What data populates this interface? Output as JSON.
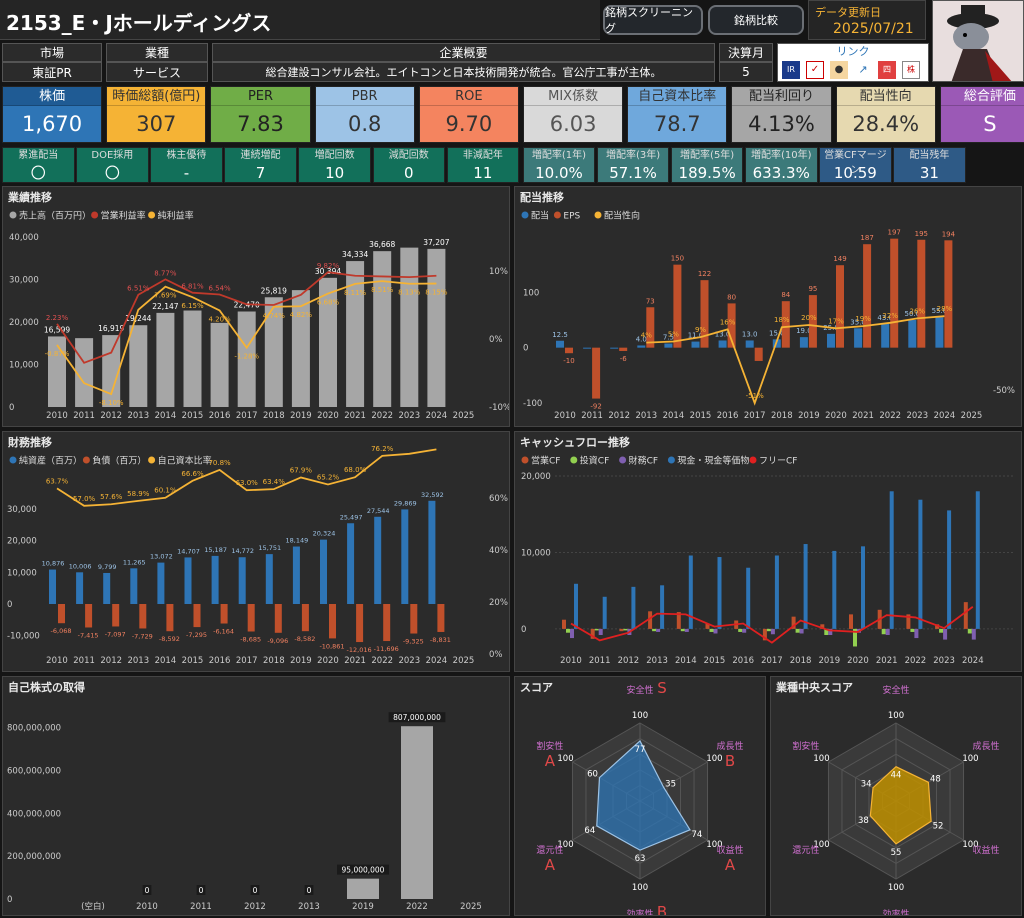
{
  "header": {
    "title": "2153_E・Jホールディングス",
    "btn_screening": "銘柄スクリーニング",
    "btn_compare": "銘柄比較",
    "update_label": "データ更新日",
    "update_date": "2025/07/21"
  },
  "info": {
    "market_label": "市場",
    "market": "東証PR",
    "industry_label": "業種",
    "industry": "サービス",
    "summary_label": "企業概要",
    "summary": "総合建設コンサル会社。エイトコンと日本技術開発が統合。官公庁工事が主体。",
    "fiscal_label": "決算月",
    "fiscal": "5",
    "link_label": "リンク"
  },
  "link_icons": [
    "ir-bank-icon",
    "kabutan-icon",
    "minkabu-icon",
    "chart-icon",
    "shikiho-icon",
    "kabunushi-icon"
  ],
  "kpis": [
    {
      "label": "株価",
      "value": "1,670",
      "bg": "#2e75b6",
      "lbg": "#1f5b94",
      "color": "#fff"
    },
    {
      "label": "時価総額(億円)",
      "value": "307",
      "bg": "#f5b335",
      "lbg": "#f5b335",
      "color": "#333"
    },
    {
      "label": "PER",
      "value": "7.83",
      "bg": "#70ad47",
      "lbg": "#70ad47",
      "color": "#222"
    },
    {
      "label": "PBR",
      "value": "0.8",
      "bg": "#9dc3e6",
      "lbg": "#9dc3e6",
      "color": "#333"
    },
    {
      "label": "ROE",
      "value": "9.70",
      "bg": "#f4845f",
      "lbg": "#f4845f",
      "color": "#333"
    },
    {
      "label": "MIX係数",
      "value": "6.03",
      "bg": "#d9d9d9",
      "lbg": "#d9d9d9",
      "color": "#555"
    },
    {
      "label": "自己資本比率",
      "value": "78.7",
      "bg": "#6fa8dc",
      "lbg": "#6fa8dc",
      "color": "#333"
    },
    {
      "label": "配当利回り",
      "value": "4.13%",
      "bg": "#a6a6a6",
      "lbg": "#a6a6a6",
      "color": "#222"
    },
    {
      "label": "配当性向",
      "value": "28.4%",
      "bg": "#e6d9b0",
      "lbg": "#e6d9b0",
      "color": "#333"
    },
    {
      "label": "総合評価",
      "value": "S",
      "bg": "#9b59b6",
      "lbg": "#9b59b6",
      "color": "#fff"
    }
  ],
  "dividend_stats": [
    {
      "label": "累進配当",
      "value": "〇"
    },
    {
      "label": "DOE採用",
      "value": "〇"
    },
    {
      "label": "株主優待",
      "value": "-"
    },
    {
      "label": "連続増配",
      "value": "7"
    },
    {
      "label": "増配回数",
      "value": "10"
    },
    {
      "label": "減配回数",
      "value": "0"
    },
    {
      "label": "非減配年",
      "value": "11"
    }
  ],
  "growth_stats": [
    {
      "label": "増配率(1年)",
      "value": "10.0%"
    },
    {
      "label": "増配率(3年)",
      "value": "57.1%"
    },
    {
      "label": "増配率(5年)",
      "value": "189.5%"
    },
    {
      "label": "増配率(10年)",
      "value": "633.3%"
    }
  ],
  "cf_stats": [
    {
      "label": "営業CFマージン",
      "value": "10.59"
    },
    {
      "label": "配当残年",
      "value": "31"
    }
  ],
  "panels": {
    "perf": "業績推移",
    "div": "配当推移",
    "fin": "財務推移",
    "cf": "キャッシュフロー推移",
    "buyback": "自己株式の取得",
    "score": "スコア",
    "median": "業種中央スコア"
  },
  "charts": [
    {
      "type": "bar",
      "title": "業績推移",
      "legend": [
        "売上高（百万円）",
        "営業利益率",
        "純利益率"
      ],
      "categories": [
        "2010",
        "2011",
        "2012",
        "2013",
        "2014",
        "2015",
        "2016",
        "2017",
        "2018",
        "2019",
        "2020",
        "2021",
        "2022",
        "2023",
        "2024",
        "2025"
      ],
      "series": [
        {
          "name": "売上高（百万円）",
          "values": [
            16599,
            16200,
            16919,
            19244,
            22147,
            22700,
            19800,
            22470,
            25819,
            27500,
            30394,
            34334,
            36668,
            37500,
            37207,
            null
          ],
          "color": "#a6a6a6"
        },
        {
          "name": "営業利益率",
          "values": [
            2.23,
            -3.5,
            -2.0,
            6.51,
            8.77,
            6.81,
            6.54,
            5.1,
            5.0,
            6.5,
            9.82,
            9.3,
            9.2,
            9.1,
            9.3,
            null
          ],
          "color": "#c0392b"
        },
        {
          "name": "純利益率",
          "values": [
            -0.87,
            -6.5,
            -8.1,
            4.3,
            7.69,
            6.15,
            4.2,
            -1.28,
            4.74,
            4.82,
            6.68,
            8.11,
            8.51,
            8.13,
            8.15,
            null
          ],
          "color": "#f5b335"
        }
      ],
      "labels_bar": [
        "16,599",
        "",
        "16,919",
        "19,244",
        "22,147",
        "",
        "",
        "22,470",
        "25,819",
        "",
        "30,394",
        "34,334",
        "36,668",
        "",
        "37,207",
        ""
      ],
      "labels_op": [
        "2.23%",
        "",
        "",
        "6.51%",
        "8.77%",
        "6.81%",
        "6.54%",
        "",
        "",
        "",
        "9.82%",
        "",
        "",
        "",
        "",
        ""
      ],
      "labels_net": [
        "-0.87%",
        "",
        "-8.10%",
        "",
        "7.69%",
        "6.15%",
        "4.20%",
        "-1.28%",
        "4.74%",
        "4.82%",
        "6.68%",
        "8.11%",
        "8.51%",
        "8.13%",
        "8.15%",
        ""
      ],
      "yticks": [
        "40,000",
        "30,000",
        "20,000",
        "10,000",
        "0"
      ],
      "y2ticks": [
        "10%",
        "0%",
        "-10%"
      ],
      "ylim": [
        0,
        40000
      ],
      "y2lim": [
        -10,
        15
      ]
    },
    {
      "type": "bar",
      "title": "配当推移",
      "legend": [
        "配当",
        "EPS",
        "配当性向"
      ],
      "categories": [
        "2010",
        "2011",
        "2012",
        "2013",
        "2014",
        "2015",
        "2016",
        "2017",
        "2018",
        "2019",
        "2020",
        "2021",
        "2022",
        "2023",
        "2024",
        "2025"
      ],
      "series": [
        {
          "name": "配当",
          "values": [
            12.5,
            0,
            0,
            4.0,
            7.5,
            11.0,
            13.0,
            13.0,
            15.0,
            19.0,
            25.0,
            35.0,
            43.0,
            50.0,
            55.0,
            null
          ],
          "color": "#2e75b6"
        },
        {
          "name": "EPS",
          "values": [
            -10,
            -92,
            -6,
            73,
            150,
            122,
            80,
            -24,
            84,
            95,
            149,
            187,
            197,
            195,
            194,
            null
          ],
          "color": "#c0502b"
        },
        {
          "name": "配当性向",
          "values": [
            null,
            null,
            null,
            4,
            5,
            9,
            16,
            -51,
            18,
            20,
            17,
            19,
            22,
            26,
            28,
            null
          ],
          "color": "#f5b335"
        }
      ],
      "labels_div": [
        "12.5",
        "",
        "",
        "4.0",
        "7.5",
        "11.0",
        "13.0",
        "13.0",
        "15.0",
        "19.0",
        "25.0",
        "35.0",
        "43.0",
        "50.0",
        "55.0",
        ""
      ],
      "labels_eps": [
        "-10",
        "-92",
        "-6",
        "73",
        "150",
        "122",
        "80",
        "",
        "84",
        "95",
        "149",
        "187",
        "197",
        "195",
        "194",
        ""
      ],
      "labels_pr": [
        "",
        "",
        "",
        "4%",
        "5%",
        "9%",
        "16%",
        "-51%",
        "18%",
        "20%",
        "17%",
        "19%",
        "22%",
        "26%",
        "28%",
        ""
      ],
      "yticks": [
        "100",
        "0",
        "-100"
      ],
      "y2ticks": [
        "-50%"
      ],
      "ylim": [
        -100,
        200
      ]
    },
    {
      "type": "bar",
      "title": "財務推移",
      "legend": [
        "純資産（百万）",
        "負債（百万）",
        "自己資本比率"
      ],
      "categories": [
        "2010",
        "2011",
        "2012",
        "2013",
        "2014",
        "2015",
        "2016",
        "2017",
        "2018",
        "2019",
        "2020",
        "2021",
        "2022",
        "2023",
        "2024",
        "2025"
      ],
      "series": [
        {
          "name": "純資産（百万）",
          "values": [
            10876,
            10006,
            9799,
            11265,
            13072,
            14707,
            15187,
            14772,
            15751,
            18149,
            20324,
            25497,
            27544,
            29869,
            32592,
            null
          ],
          "color": "#2e75b6"
        },
        {
          "name": "負債（百万）",
          "values": [
            -6068,
            -7415,
            -7097,
            -7729,
            -8592,
            -7295,
            -6164,
            -8685,
            -9096,
            -8582,
            -10861,
            -12016,
            -11696,
            -9325,
            -8831,
            null
          ],
          "color": "#c0502b"
        },
        {
          "name": "自己資本比率",
          "values": [
            63.7,
            57.0,
            57.6,
            58.9,
            60.1,
            66.6,
            70.8,
            63.0,
            63.4,
            67.9,
            65.2,
            68.0,
            76.2,
            77.0,
            78.7,
            null
          ],
          "color": "#f5b335"
        }
      ],
      "labels_pr": [
        "63.7%",
        "57.0%",
        "57.6%",
        "58.9%",
        "60.1%",
        "66.6%",
        "70.8%",
        "63.0%",
        "63.4%",
        "67.9%",
        "65.2%",
        "68.0%",
        "76.2%",
        "",
        "",
        ""
      ],
      "yticks": [
        "30,000",
        "20,000",
        "10,000",
        "0",
        "-10,000"
      ],
      "y2ticks": [
        "60%",
        "40%",
        "20%",
        "0%"
      ],
      "ylim": [
        -12000,
        36000
      ]
    },
    {
      "type": "bar",
      "title": "キャッシュフロー推移",
      "legend": [
        "営業CF",
        "投資CF",
        "財務CF",
        "現金・現金等価物",
        "フリーCF"
      ],
      "categories": [
        "2010",
        "2011",
        "2012",
        "2013",
        "2014",
        "2015",
        "2016",
        "2017",
        "2018",
        "2019",
        "2020",
        "2021",
        "2022",
        "2023",
        "2024"
      ],
      "series": [
        {
          "name": "営業CF",
          "values": [
            1200,
            -1300,
            -300,
            2300,
            2200,
            700,
            1100,
            -1500,
            1600,
            600,
            1900,
            2500,
            1900,
            600,
            3500
          ],
          "color": "#c0502b"
        },
        {
          "name": "投資CF",
          "values": [
            -500,
            -200,
            -200,
            -300,
            -300,
            -400,
            -400,
            -300,
            -500,
            -800,
            -2300,
            -700,
            -400,
            -500,
            -600
          ],
          "color": "#92d050"
        },
        {
          "name": "財務CF",
          "values": [
            -1200,
            -800,
            -800,
            -400,
            -400,
            -600,
            -500,
            -700,
            -600,
            -800,
            -500,
            -800,
            -1200,
            -1400,
            -1400
          ],
          "color": "#7f5fb0"
        },
        {
          "name": "現金・現金等価物",
          "values": [
            5900,
            4200,
            5500,
            5700,
            9600,
            9400,
            8000,
            9600,
            11100,
            10200,
            10800,
            18000,
            16900,
            15500,
            18000
          ],
          "color": "#2e75b6"
        },
        {
          "name": "フリーCF",
          "values": [
            700,
            -1500,
            -500,
            2000,
            1900,
            300,
            700,
            -1800,
            1100,
            -200,
            -400,
            1800,
            1500,
            100,
            2900
          ],
          "color": "#e02020"
        }
      ],
      "yticks": [
        "20,000",
        "10,000",
        "0"
      ],
      "ylim": [
        -2500,
        20000
      ]
    },
    {
      "type": "bar",
      "title": "自己株式の取得",
      "categories": [
        "(空白)",
        "2010",
        "2011",
        "2012",
        "2013",
        "2019",
        "2022",
        "2025"
      ],
      "values": [
        0,
        0,
        0,
        0,
        0,
        95000000,
        807000000,
        null
      ],
      "labels": [
        "",
        "0",
        "0",
        "0",
        "0",
        "95,000,000",
        "807,000,000",
        ""
      ],
      "yticks": [
        "800,000,000",
        "600,000,000",
        "400,000,000",
        "200,000,000",
        "0"
      ],
      "ylim": [
        0,
        850000000
      ]
    },
    {
      "type": "radar",
      "title": "スコア",
      "axes": [
        "安全性",
        "成長性",
        "収益性",
        "効率性",
        "還元性",
        "割安性"
      ],
      "values": [
        77,
        35,
        74,
        63,
        64,
        60
      ],
      "grades": [
        "S",
        "B",
        "A",
        "B",
        "A",
        "A"
      ],
      "max_label": "100"
    },
    {
      "type": "radar",
      "title": "業種中央スコア",
      "axes": [
        "安全性",
        "成長性",
        "収益性",
        "効率性",
        "還元性",
        "割安性"
      ],
      "values": [
        44,
        48,
        52,
        55,
        38,
        34
      ],
      "max_label": "100"
    }
  ]
}
